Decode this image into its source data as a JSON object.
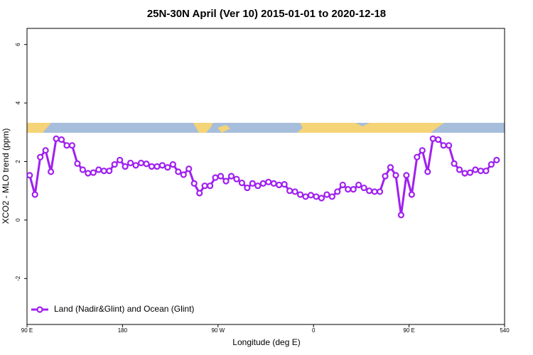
{
  "chart_data": {
    "type": "line",
    "title": "25N-30N April (Ver 10)   2015-01-01 to 2020-12-18",
    "x_label": "Longitude (deg E)",
    "y_label": "XCO2 - MLO trend (ppm)",
    "x": [
      92.5,
      97.5,
      102.5,
      107.5,
      112.5,
      117.5,
      122.5,
      127.5,
      132.5,
      137.5,
      142.5,
      147.5,
      152.5,
      157.5,
      162.5,
      167.5,
      172.5,
      177.5,
      182.5,
      187.5,
      192.5,
      197.5,
      202.5,
      207.5,
      212.5,
      217.5,
      222.5,
      227.5,
      232.5,
      237.5,
      242.5,
      247.5,
      252.5,
      257.5,
      262.5,
      267.5,
      272.5,
      277.5,
      282.5,
      287.5,
      292.5,
      297.5,
      302.5,
      307.5,
      312.5,
      317.5,
      322.5,
      327.5,
      332.5,
      337.5,
      342.5,
      347.5,
      352.5,
      357.5,
      362.5,
      367.5,
      372.5,
      377.5,
      382.5,
      387.5,
      392.5,
      397.5,
      402.5,
      407.5,
      412.5,
      417.5,
      422.5,
      427.5,
      432.5,
      437.5,
      442.5,
      447.5,
      452.5,
      457.5,
      462.5,
      467.5,
      472.5,
      477.5,
      482.5,
      487.5,
      492.5,
      497.5,
      502.5,
      507.5,
      512.5,
      517.5,
      522.5,
      527.5,
      532.5
    ],
    "series": [
      {
        "name": "Land (Nadir&Glint) and Ocean (Glint)",
        "color": "#a020f0",
        "values": [
          1.53,
          0.87,
          2.15,
          2.38,
          1.65,
          2.78,
          2.75,
          2.55,
          2.55,
          1.93,
          1.72,
          1.6,
          1.62,
          1.72,
          1.68,
          1.68,
          1.9,
          2.05,
          1.83,
          1.95,
          1.87,
          1.95,
          1.92,
          1.83,
          1.83,
          1.87,
          1.8,
          1.9,
          1.65,
          1.55,
          1.75,
          1.25,
          0.92,
          1.17,
          1.17,
          1.45,
          1.5,
          1.33,
          1.5,
          1.4,
          1.27,
          1.1,
          1.25,
          1.17,
          1.25,
          1.3,
          1.25,
          1.2,
          1.22,
          1.0,
          0.97,
          0.87,
          0.8,
          0.85,
          0.8,
          0.75,
          0.87,
          0.8,
          0.97,
          1.2,
          1.05,
          1.05,
          1.2,
          1.1,
          1.0,
          0.97,
          0.97,
          1.5,
          1.8,
          1.53,
          0.17,
          1.53,
          0.87,
          2.15,
          2.38,
          1.65,
          2.78,
          2.75,
          2.55,
          2.55,
          1.93,
          1.72,
          1.6,
          1.62,
          1.72,
          1.68,
          1.68,
          1.9,
          2.05
        ]
      }
    ],
    "xlim": [
      90,
      540
    ],
    "xticks": [
      {
        "value": 90,
        "label": "90 E"
      },
      180,
      {
        "value": 270,
        "label": "90 W"
      },
      {
        "value": 360,
        "label": "0"
      },
      {
        "value": 450,
        "label": "90 E"
      },
      540
    ],
    "ylim": [
      -3.57,
      6.55
    ],
    "yticks": [
      -2,
      0,
      2,
      4,
      6
    ],
    "legend": "bottom-left",
    "grid": false
  }
}
